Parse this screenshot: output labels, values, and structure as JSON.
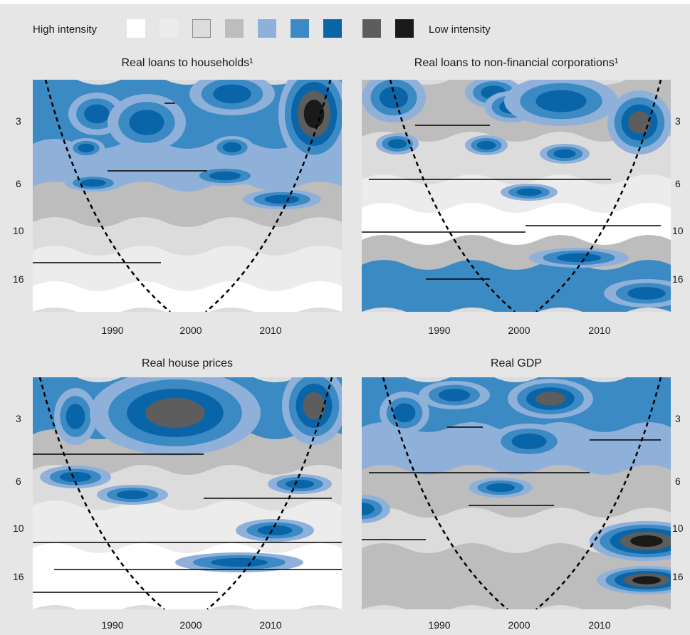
{
  "legend": {
    "high_label": "High intensity",
    "low_label": "Low intensity",
    "colors": [
      "#ffffff",
      "#ececec",
      "#dcdcdc",
      "#bdbdbd",
      "#8fb0d9",
      "#3b8ac4",
      "#0a64a8",
      "#5d5d5d",
      "#1a1a1a"
    ]
  },
  "chart_data": [
    {
      "type": "heatmap",
      "title": "Real loans to households¹",
      "x_ticks": [
        "1990",
        "2000",
        "2010"
      ],
      "y_ticks": [
        "3",
        "6",
        "10",
        "16"
      ],
      "y_scale": "log"
    },
    {
      "type": "heatmap",
      "title": "Real loans to non-financial corporations¹",
      "x_ticks": [
        "1990",
        "2000",
        "2010"
      ],
      "y_ticks": [
        "3",
        "6",
        "10",
        "16"
      ],
      "y_scale": "log"
    },
    {
      "type": "heatmap",
      "title": "Real house prices",
      "x_ticks": [
        "1990",
        "2000",
        "2010"
      ],
      "y_ticks": [
        "3",
        "6",
        "10",
        "16"
      ],
      "y_scale": "log"
    },
    {
      "type": "heatmap",
      "title": "Real GDP",
      "x_ticks": [
        "1990",
        "2000",
        "2010"
      ],
      "y_ticks": [
        "3",
        "6",
        "10",
        "16"
      ],
      "y_scale": "log"
    }
  ]
}
